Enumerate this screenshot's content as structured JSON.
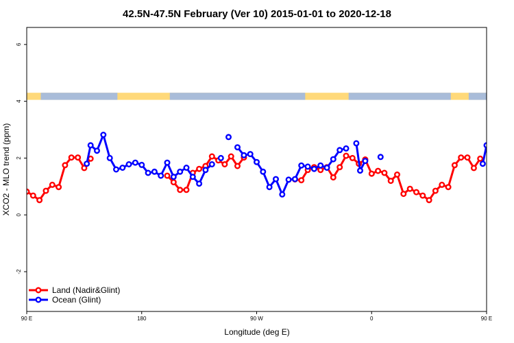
{
  "chart_data": {
    "type": "line",
    "title": "42.5N-47.5N February (Ver 10)   2015-01-01 to 2020-12-18",
    "xlabel": "Longitude (deg E)",
    "ylabel": "XCO2 - MLO trend (ppm)",
    "xlim": [
      90,
      450
    ],
    "ylim": [
      -3.4,
      6.6
    ],
    "x_ticks": [
      {
        "value": 90,
        "label": "90 E"
      },
      {
        "value": 180,
        "label": "180"
      },
      {
        "value": 270,
        "label": "90 W"
      },
      {
        "value": 360,
        "label": "0"
      },
      {
        "value": 450,
        "label": "90 E"
      },
      {
        "value": 540,
        "label": "180"
      }
    ],
    "y_ticks": [
      {
        "value": -2,
        "label": "-2"
      },
      {
        "value": 0,
        "label": "0"
      },
      {
        "value": 2,
        "label": "2"
      },
      {
        "value": 4,
        "label": "4"
      },
      {
        "value": 6,
        "label": "6"
      }
    ],
    "legend_position": "bottom-left",
    "surface_band": {
      "y_range": [
        4.05,
        4.3
      ],
      "land_color": "#FFD97A",
      "ocean_color": "#A9BCD9",
      "ocean_segments": [
        [
          101,
          161
        ],
        [
          202,
          308
        ],
        [
          342,
          422
        ],
        [
          436,
          450
        ]
      ]
    },
    "series": [
      {
        "name": "Land (Nadir&Glint)",
        "color": "#FF0000",
        "segments": [
          [
            [
              90,
              0.82
            ],
            [
              95,
              0.68
            ],
            [
              100,
              0.52
            ],
            [
              105,
              0.85
            ],
            [
              110,
              1.06
            ],
            [
              115,
              0.98
            ],
            [
              120,
              1.75
            ],
            [
              125,
              2.02
            ],
            [
              130,
              2.02
            ],
            [
              135,
              1.65
            ],
            [
              140,
              1.98
            ]
          ],
          [
            [
              200,
              1.38
            ],
            [
              205,
              1.15
            ],
            [
              210,
              0.88
            ],
            [
              215,
              0.88
            ],
            [
              220,
              1.48
            ],
            [
              225,
              1.62
            ],
            [
              230,
              1.72
            ],
            [
              235,
              2.06
            ],
            [
              240,
              1.92
            ],
            [
              245,
              1.78
            ],
            [
              250,
              2.06
            ],
            [
              255,
              1.72
            ],
            [
              260,
              2.02
            ]
          ],
          [
            [
              300,
              1.25
            ],
            [
              305,
              1.22
            ],
            [
              310,
              1.58
            ],
            [
              315,
              1.68
            ],
            [
              320,
              1.58
            ],
            [
              325,
              1.68
            ],
            [
              330,
              1.32
            ],
            [
              335,
              1.68
            ],
            [
              340,
              2.08
            ],
            [
              345,
              2.0
            ],
            [
              350,
              1.8
            ],
            [
              355,
              1.95
            ],
            [
              360,
              1.45
            ],
            [
              365,
              1.55
            ],
            [
              370,
              1.48
            ],
            [
              375,
              1.2
            ],
            [
              380,
              1.42
            ],
            [
              385,
              0.74
            ],
            [
              390,
              0.92
            ],
            [
              395,
              0.8
            ],
            [
              400,
              0.68
            ],
            [
              405,
              0.52
            ],
            [
              410,
              0.85
            ],
            [
              415,
              1.06
            ],
            [
              420,
              0.98
            ],
            [
              425,
              1.75
            ],
            [
              430,
              2.02
            ],
            [
              435,
              2.02
            ],
            [
              440,
              1.65
            ],
            [
              445,
              1.98
            ]
          ]
        ]
      },
      {
        "name": "Ocean (Glint)",
        "color": "#0000FF",
        "segments": [
          [
            [
              137,
              1.8
            ],
            [
              140,
              2.45
            ],
            [
              145,
              2.26
            ],
            [
              150,
              2.82
            ],
            [
              155,
              2.0
            ],
            [
              160,
              1.6
            ],
            [
              165,
              1.66
            ],
            [
              170,
              1.78
            ],
            [
              175,
              1.84
            ],
            [
              180,
              1.76
            ],
            [
              185,
              1.48
            ],
            [
              190,
              1.52
            ],
            [
              195,
              1.38
            ],
            [
              200,
              1.84
            ],
            [
              205,
              1.34
            ],
            [
              210,
              1.52
            ],
            [
              215,
              1.66
            ],
            [
              220,
              1.34
            ],
            [
              225,
              1.1
            ],
            [
              230,
              1.58
            ],
            [
              235,
              1.78
            ]
          ],
          [
            [
              242,
              2.0
            ]
          ],
          [
            [
              248,
              2.74
            ]
          ],
          [
            [
              255,
              2.38
            ],
            [
              260,
              2.1
            ],
            [
              265,
              2.14
            ],
            [
              270,
              1.86
            ],
            [
              275,
              1.52
            ],
            [
              280,
              0.98
            ],
            [
              285,
              1.26
            ],
            [
              290,
              0.72
            ],
            [
              295,
              1.24
            ],
            [
              300,
              1.26
            ],
            [
              305,
              1.74
            ],
            [
              310,
              1.7
            ],
            [
              315,
              1.62
            ],
            [
              320,
              1.74
            ],
            [
              325,
              1.66
            ],
            [
              330,
              1.96
            ],
            [
              335,
              2.28
            ],
            [
              340,
              2.34
            ]
          ],
          [
            [
              348,
              2.52
            ],
            [
              351,
              1.56
            ],
            [
              355,
              1.9
            ]
          ],
          [
            [
              367,
              2.04
            ]
          ],
          [
            [
              447,
              1.8
            ],
            [
              450,
              2.45
            ],
            [
              455,
              2.26
            ],
            [
              460,
              2.82
            ],
            [
              465,
              2.0
            ],
            [
              470,
              1.6
            ],
            [
              475,
              1.66
            ],
            [
              480,
              1.78
            ],
            [
              485,
              1.84
            ]
          ]
        ]
      }
    ]
  }
}
